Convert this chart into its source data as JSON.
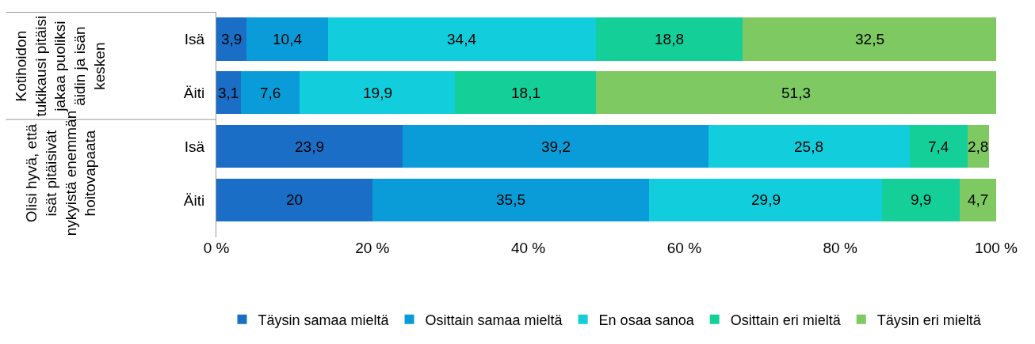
{
  "chart_data": {
    "type": "bar",
    "orientation": "horizontal",
    "stacked": true,
    "categories": [
      "Isä",
      "Äiti",
      "Isä",
      "Äiti"
    ],
    "series": [
      {
        "name": "Täysin samaa mieltä",
        "color": "#1b6ec6",
        "values": [
          3.9,
          3.1,
          23.9,
          20
        ],
        "value_labels": [
          "3,9",
          "3,1",
          "23,9",
          "20"
        ]
      },
      {
        "name": "Osittain samaa mieltä",
        "color": "#0a9cd8",
        "values": [
          10.4,
          7.6,
          39.2,
          35.5
        ],
        "value_labels": [
          "10,4",
          "7,6",
          "39,2",
          "35,5"
        ]
      },
      {
        "name": "En osaa sanoa",
        "color": "#12cddb",
        "values": [
          34.4,
          19.9,
          25.8,
          29.9
        ],
        "value_labels": [
          "34,4",
          "19,9",
          "25,8",
          "29,9"
        ]
      },
      {
        "name": "Osittain eri mieltä",
        "color": "#14cf98",
        "values": [
          18.8,
          18.1,
          7.4,
          9.9
        ],
        "value_labels": [
          "18,8",
          "18,1",
          "7,4",
          "9,9"
        ]
      },
      {
        "name": "Täysin eri mieltä",
        "color": "#7ec961",
        "values": [
          32.5,
          51.3,
          2.8,
          4.7
        ],
        "value_labels": [
          "32,5",
          "51,3",
          "2,8",
          "4,7"
        ]
      }
    ],
    "xlim": [
      0,
      100
    ],
    "xticks": [
      {
        "value": 0,
        "label": "0 %"
      },
      {
        "value": 20,
        "label": "20 %"
      },
      {
        "value": 40,
        "label": "40 %"
      },
      {
        "value": 60,
        "label": "60 %"
      },
      {
        "value": 80,
        "label": "80 %"
      },
      {
        "value": 100,
        "label": "100 %"
      }
    ],
    "annotations": [
      "Kotihoidon tukikausi pitäisi jakaa puoliksi äidin ja isän kesken",
      "Olisi hyvä, että isät pitäisivät nykyistä enemmän hoitovapaata"
    ],
    "grid": false,
    "legend": "bottom"
  }
}
